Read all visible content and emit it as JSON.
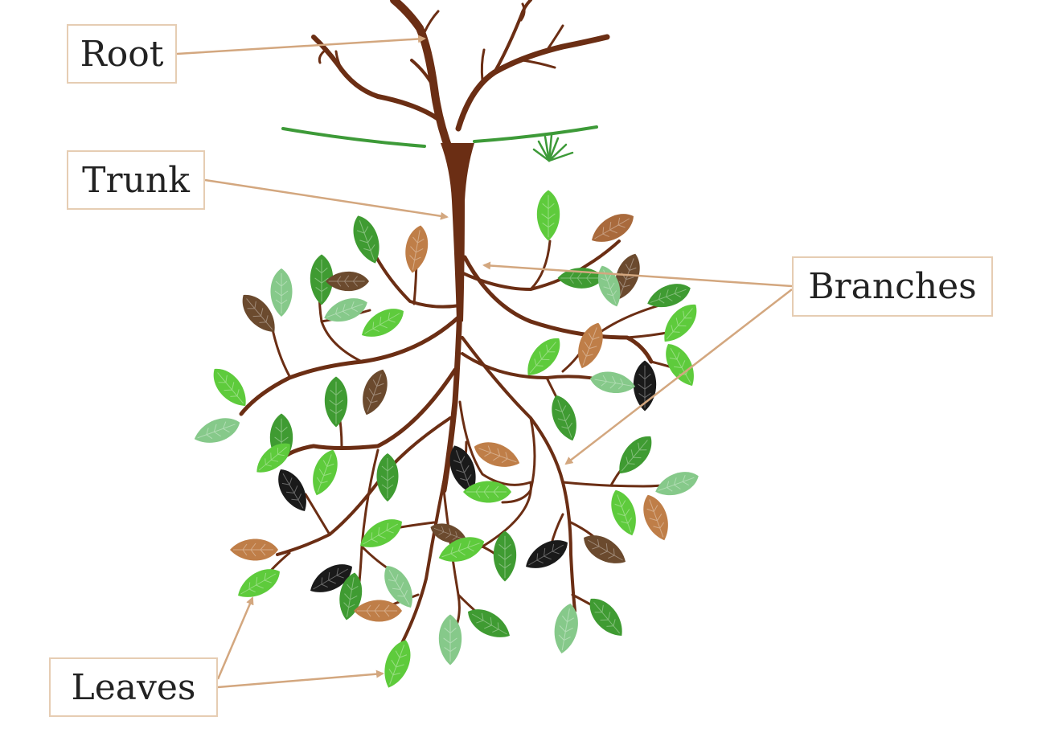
{
  "labels": {
    "root": "Root",
    "trunk": "Trunk",
    "branches": "Branches",
    "leaves": "Leaves"
  },
  "colors": {
    "bark": "#6b2e14",
    "arrow": "#d3a77f",
    "leaf_palette": [
      "#5ecb3c",
      "#3f9b32",
      "#86c98a",
      "#a96a3c",
      "#6b4a2e",
      "#1a1a1a",
      "#bf7e48",
      "#2e8b2e"
    ],
    "grass": "#3d9a38"
  }
}
